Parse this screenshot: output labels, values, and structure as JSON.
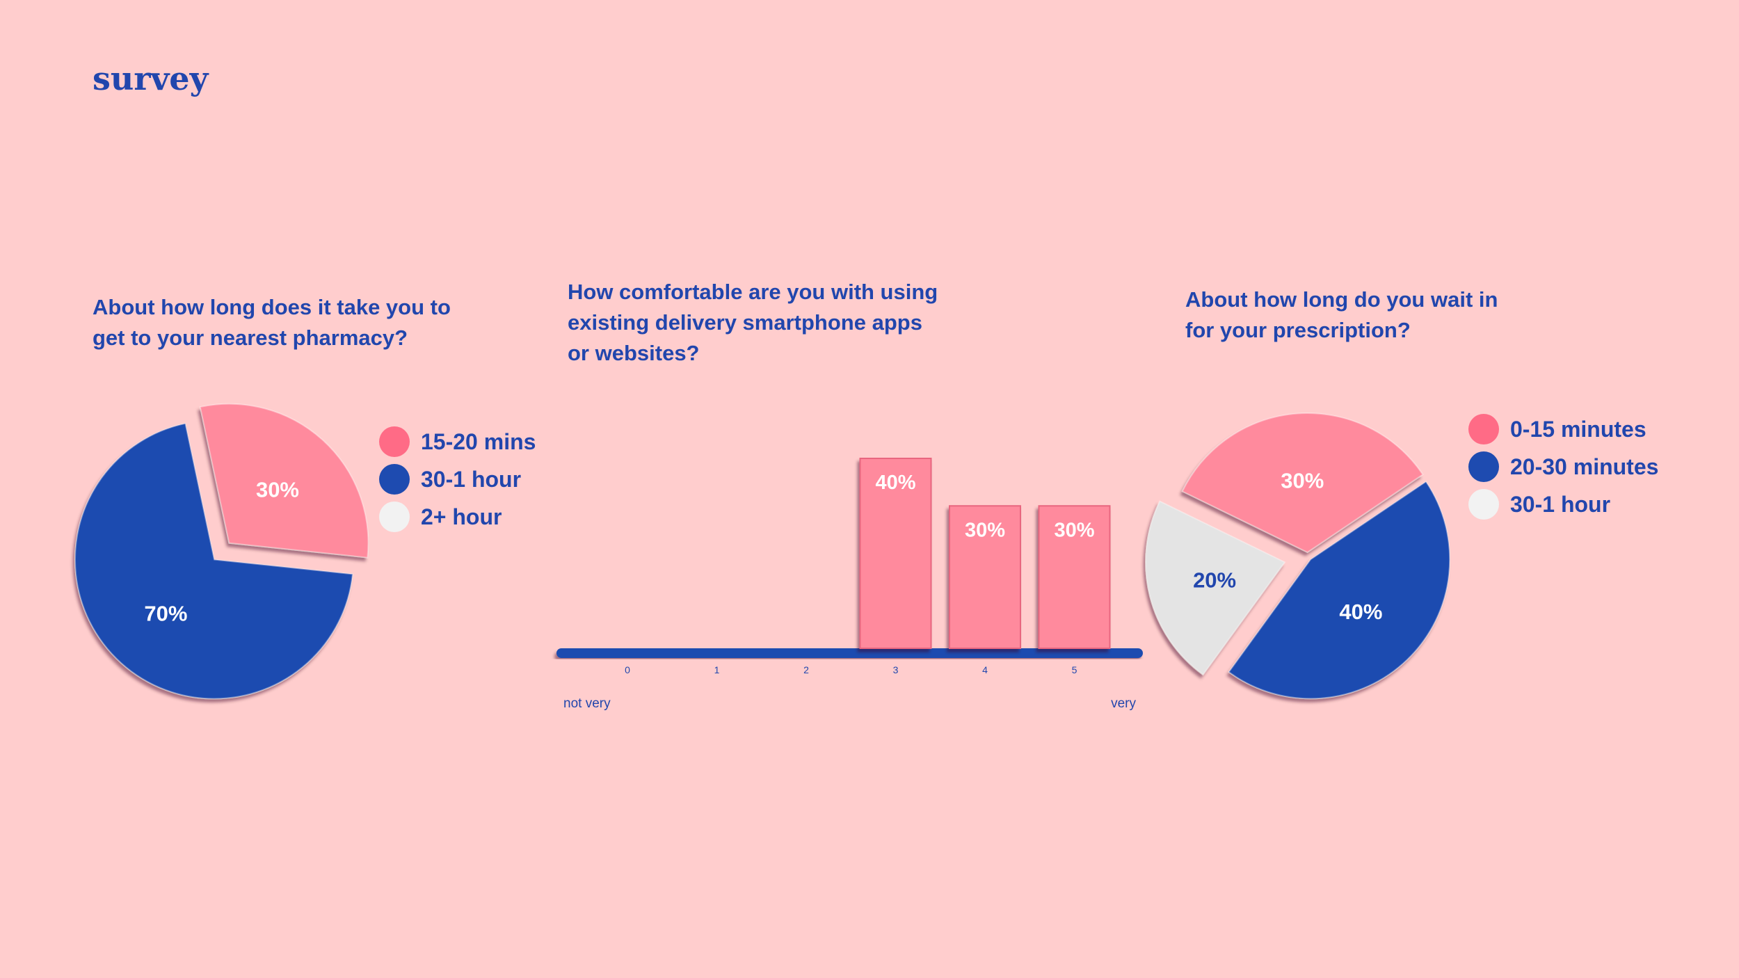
{
  "page": {
    "title": "survey"
  },
  "colors": {
    "background": "#ffcdcd",
    "primary_blue": "#1e4bb0",
    "pink": "#ff8a9d",
    "legend_pink": "#ff6b86",
    "light": "#e4e4e4",
    "text": "#2146ad"
  },
  "chart_data": [
    {
      "type": "pie",
      "title": "About how long does it take you to get to your nearest pharmacy?",
      "title_lines": [
        "About how long does it take you to",
        "get to your nearest pharmacy?"
      ],
      "slices": [
        {
          "label": "15-20 mins",
          "value": 30,
          "display": "30%",
          "color": "#ff8a9d",
          "legend_color": "#ff6b86"
        },
        {
          "label": "30-1 hour",
          "value": 70,
          "display": "70%",
          "color": "#1e4bb0",
          "legend_color": "#1e4bb0"
        },
        {
          "label": "2+ hour",
          "value": 0,
          "display": "",
          "color": "#f2f2f2",
          "legend_color": "#f2f2f2"
        }
      ],
      "legend": [
        "15-20 mins",
        "30-1 hour",
        "2+ hour"
      ]
    },
    {
      "type": "bar",
      "title": "How comfortable are you with using existing delivery smartphone apps or websites?",
      "title_lines": [
        "How comfortable are you with using",
        "existing delivery smartphone apps",
        "or websites?"
      ],
      "categories": [
        "0",
        "1",
        "2",
        "3",
        "4",
        "5"
      ],
      "values": [
        0,
        0,
        0,
        40,
        30,
        30
      ],
      "data_labels": [
        "",
        "",
        "",
        "40%",
        "30%",
        "30%"
      ],
      "ylim": [
        0,
        40
      ],
      "scale_min_label": "not very",
      "scale_max_label": "very"
    },
    {
      "type": "pie",
      "title": "About how long do you wait in for your prescription?",
      "title_lines": [
        "About how long do you wait in",
        "for your prescription?"
      ],
      "slices": [
        {
          "label": "0-15 minutes",
          "value": 30,
          "display": "30%",
          "color": "#ff8a9d",
          "legend_color": "#ff6b86"
        },
        {
          "label": "20-30 minutes",
          "value": 40,
          "display": "40%",
          "color": "#1e4bb0",
          "legend_color": "#1e4bb0"
        },
        {
          "label": "30-1 hour",
          "value": 20,
          "display": "20%",
          "color": "#e4e4e4",
          "legend_color": "#f2f2f2"
        }
      ],
      "legend": [
        "0-15 minutes",
        "20-30 minutes",
        "30-1 hour"
      ]
    }
  ]
}
